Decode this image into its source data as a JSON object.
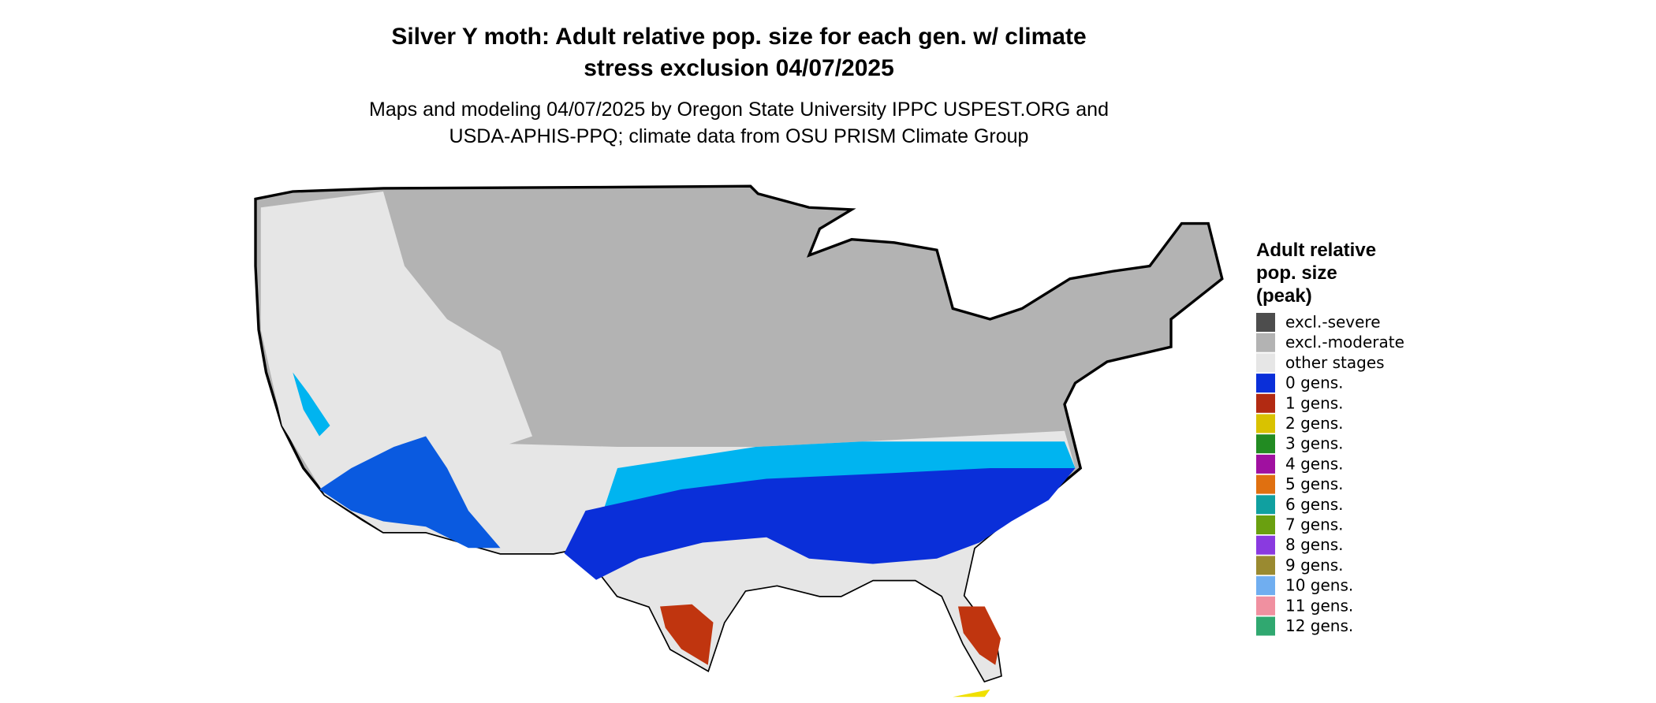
{
  "title": [
    "Silver Y moth: Adult relative pop. size for each gen. w/ climate",
    "stress exclusion 04/07/2025"
  ],
  "subtitle": [
    "Maps and modeling 04/07/2025 by Oregon State University IPPC USPEST.ORG and",
    "USDA-APHIS-PPQ; climate data from OSU PRISM Climate Group"
  ],
  "legend": {
    "title": [
      "Adult relative",
      "pop. size",
      "(peak)"
    ],
    "items": [
      {
        "label": "excl.-severe",
        "color": "#4d4d4d"
      },
      {
        "label": "excl.-moderate",
        "color": "#b3b3b3"
      },
      {
        "label": "other stages",
        "color": "#e6e6e6"
      },
      {
        "label": "0 gens.",
        "color": "#0a2fd9"
      },
      {
        "label": "1 gens.",
        "color": "#b22a12"
      },
      {
        "label": "2 gens.",
        "color": "#d9c200"
      },
      {
        "label": "3 gens.",
        "color": "#228b22"
      },
      {
        "label": "4 gens.",
        "color": "#a010a0"
      },
      {
        "label": "5 gens.",
        "color": "#e07010"
      },
      {
        "label": "6 gens.",
        "color": "#10a0a0"
      },
      {
        "label": "7 gens.",
        "color": "#6aa010"
      },
      {
        "label": "8 gens.",
        "color": "#8a3ae0"
      },
      {
        "label": "9 gens.",
        "color": "#9a8a30"
      },
      {
        "label": "10 gens.",
        "color": "#70aef0"
      },
      {
        "label": "11 gens.",
        "color": "#f090a0"
      },
      {
        "label": "12 gens.",
        "color": "#30a870"
      }
    ]
  }
}
